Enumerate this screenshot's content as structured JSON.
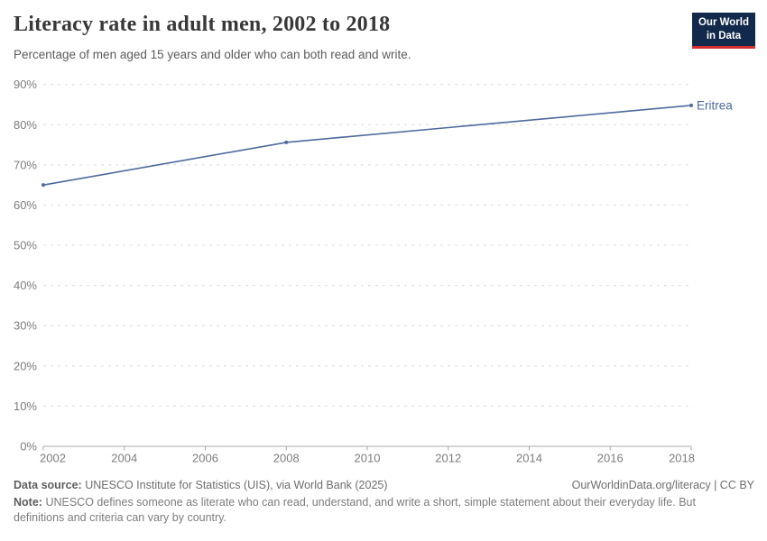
{
  "header": {
    "title": "Literacy rate in adult men, 2002 to 2018",
    "subtitle": "Percentage of men aged 15 years and older who can both read and write.",
    "logo": {
      "line1": "Our World",
      "line2": "in Data"
    }
  },
  "chart_data": {
    "type": "line",
    "title": "Literacy rate in adult men, 2002 to 2018",
    "x": [
      2002,
      2008,
      2018
    ],
    "series": [
      {
        "name": "Eritrea",
        "values": [
          65,
          75.6,
          84.8
        ],
        "color": "#4C6A9C"
      }
    ],
    "end_label": "Eritrea",
    "x_ticks": [
      2002,
      2004,
      2006,
      2008,
      2010,
      2012,
      2014,
      2016,
      2018
    ],
    "y_ticks": [
      0,
      10,
      20,
      30,
      40,
      50,
      60,
      70,
      80,
      90
    ],
    "y_tick_suffix": "%",
    "xlim": [
      2002,
      2018
    ],
    "ylim": [
      0,
      90
    ],
    "grid": "horizontal-dashed",
    "legend_position": "line-end-label"
  },
  "footer": {
    "data_source_label": "Data source:",
    "data_source_text": "UNESCO Institute for Statistics (UIS), via World Bank (2025)",
    "license_text": "OurWorldinData.org/literacy | CC BY",
    "note_label": "Note:",
    "note_text": "UNESCO defines someone as literate who can read, understand, and write a short, simple statement about their everyday life. But definitions and criteria can vary by country."
  },
  "colors": {
    "line": "#4C6A9C",
    "entity_label": "#4C6A9C",
    "grid": "#DCDCDC",
    "axis": "#A8A8A8",
    "tick_label": "#7D7D7D",
    "title": "#383838",
    "subtitle": "#5B5B5B",
    "logo_bg": "#12294B",
    "logo_red": "#D32F2F"
  }
}
